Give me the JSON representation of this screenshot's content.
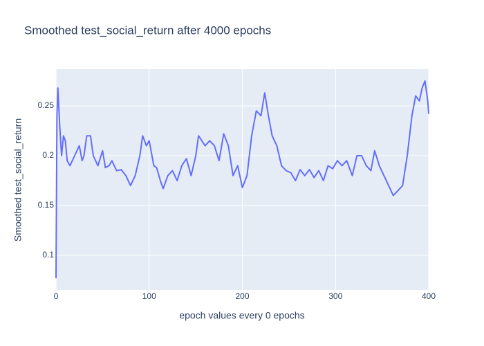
{
  "chart_data": {
    "type": "line",
    "title": "Smoothed test_social_return after 4000 epochs",
    "x_label": "epoch values every 0 epochs",
    "y_label": "Smoothed test_social_return",
    "color": "#636efa",
    "x": [
      0,
      1,
      2,
      4,
      6,
      8,
      10,
      12,
      15,
      20,
      25,
      28,
      30,
      33,
      37,
      40,
      45,
      50,
      53,
      57,
      60,
      65,
      70,
      75,
      80,
      85,
      90,
      93,
      97,
      100,
      105,
      108,
      112,
      115,
      120,
      125,
      130,
      135,
      140,
      145,
      150,
      153,
      160,
      165,
      170,
      175,
      180,
      185,
      190,
      195,
      200,
      205,
      210,
      215,
      220,
      224,
      228,
      232,
      237,
      242,
      247,
      252,
      257,
      262,
      267,
      272,
      277,
      282,
      287,
      292,
      297,
      302,
      307,
      312,
      318,
      323,
      328,
      333,
      338,
      342,
      347,
      352,
      357,
      362,
      367,
      372,
      377,
      382,
      386,
      390,
      393,
      396,
      399,
      400
    ],
    "values": [
      0.077,
      0.24,
      0.268,
      0.23,
      0.2,
      0.22,
      0.215,
      0.195,
      0.19,
      0.2,
      0.21,
      0.195,
      0.2,
      0.22,
      0.22,
      0.2,
      0.19,
      0.205,
      0.188,
      0.19,
      0.195,
      0.185,
      0.186,
      0.18,
      0.17,
      0.18,
      0.2,
      0.22,
      0.21,
      0.215,
      0.19,
      0.188,
      0.175,
      0.167,
      0.18,
      0.185,
      0.175,
      0.19,
      0.197,
      0.18,
      0.2,
      0.22,
      0.21,
      0.215,
      0.21,
      0.195,
      0.222,
      0.21,
      0.18,
      0.19,
      0.168,
      0.18,
      0.22,
      0.245,
      0.24,
      0.263,
      0.24,
      0.22,
      0.21,
      0.19,
      0.185,
      0.183,
      0.175,
      0.186,
      0.18,
      0.186,
      0.178,
      0.185,
      0.175,
      0.19,
      0.187,
      0.195,
      0.19,
      0.195,
      0.18,
      0.2,
      0.2,
      0.19,
      0.185,
      0.205,
      0.19,
      0.18,
      0.17,
      0.16,
      0.165,
      0.17,
      0.2,
      0.24,
      0.26,
      0.255,
      0.268,
      0.275,
      0.255,
      0.242
    ],
    "xlim": [
      0,
      400
    ],
    "xticks": [
      0,
      100,
      200,
      300,
      400
    ],
    "ylim": [
      0.0653,
      0.2868
    ],
    "yticks": [
      0.1,
      0.15,
      0.2,
      0.25
    ],
    "grid": true
  }
}
